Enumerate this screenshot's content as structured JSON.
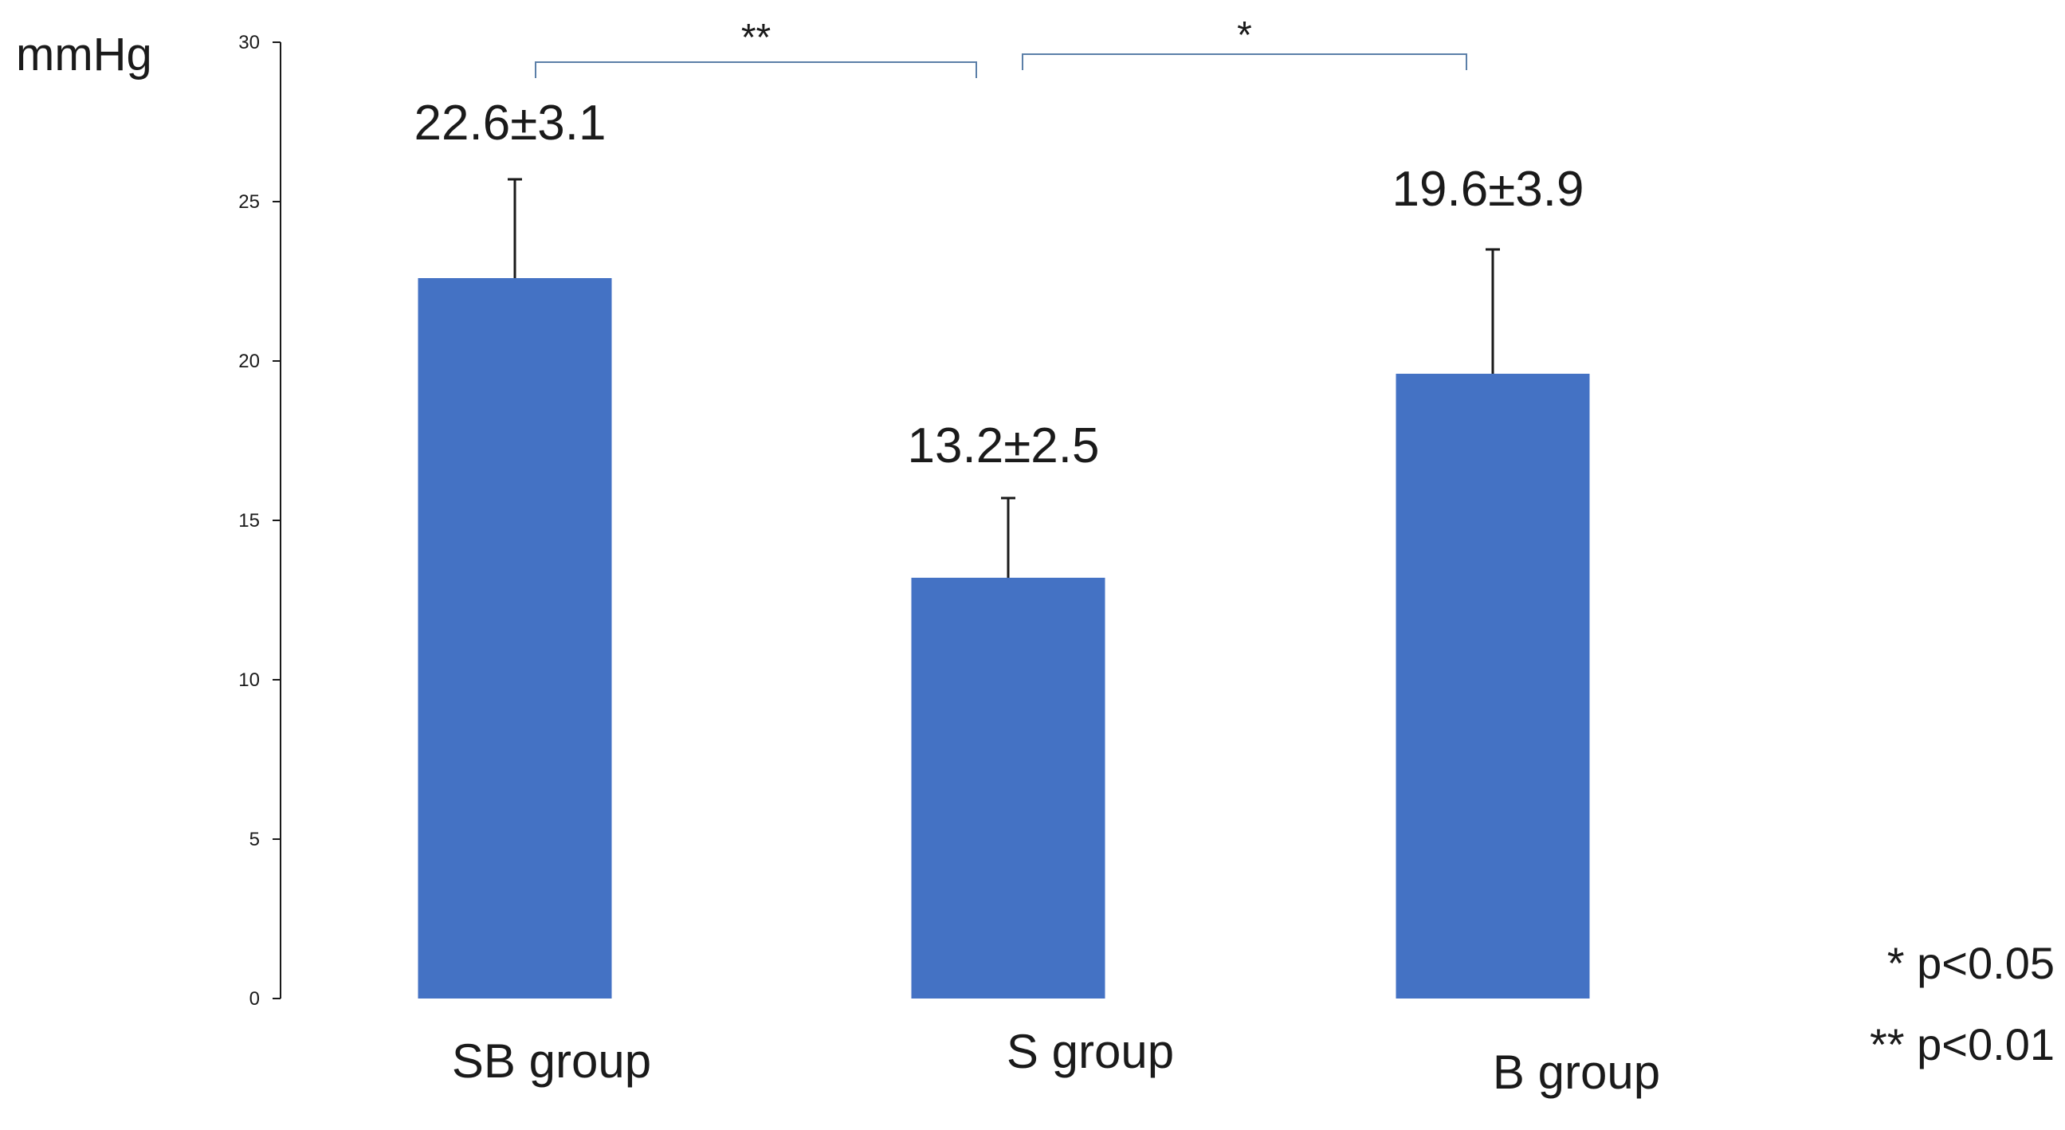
{
  "chart_data": {
    "type": "bar",
    "title": "",
    "xlabel": "",
    "ylabel": "mmHg",
    "ylim": [
      0,
      30
    ],
    "yticks": [
      0,
      5,
      10,
      15,
      20,
      25,
      30
    ],
    "categories": [
      "SB group",
      "S group",
      "B group"
    ],
    "series": [
      {
        "values": [
          22.6,
          13.2,
          19.6
        ],
        "errors": [
          3.1,
          2.5,
          3.9
        ],
        "value_labels": [
          "22.6±3.1",
          "13.2±2.5",
          "19.6±3.9"
        ]
      }
    ],
    "significance": [
      {
        "from": "SB group",
        "to": "S group",
        "label": "**"
      },
      {
        "from": "S group",
        "to": "B group",
        "label": "*"
      }
    ],
    "legend": [
      "* p<0.05",
      "** p<0.01"
    ],
    "bar_color": "#4472c4",
    "axis_color": "#1a1a1a",
    "bracket_color": "#5b7fa8",
    "grid": false
  }
}
